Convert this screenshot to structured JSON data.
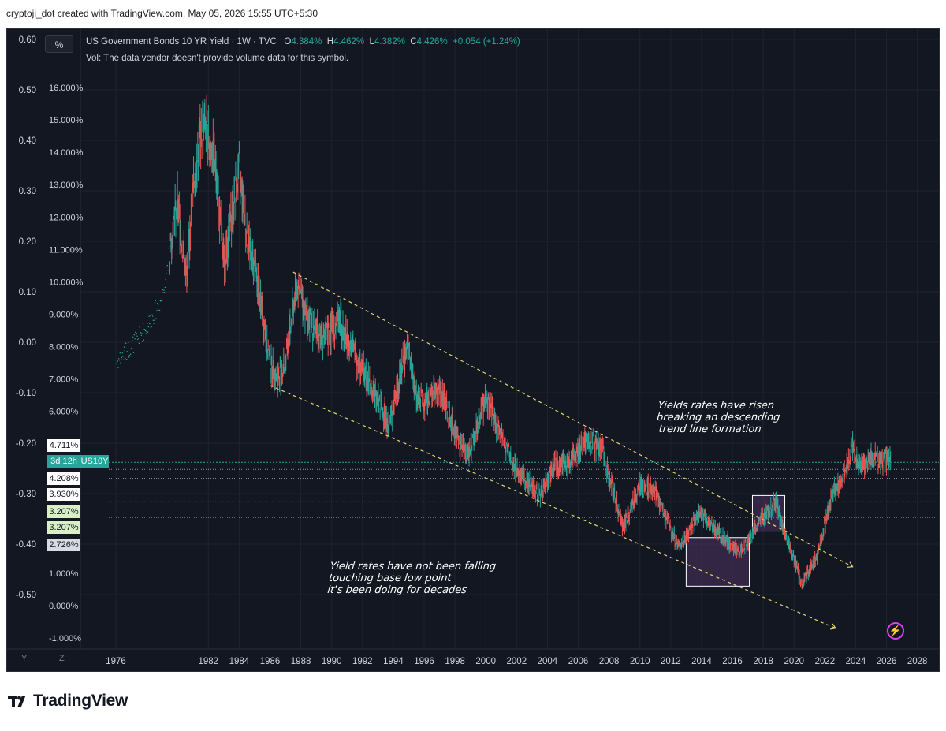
{
  "caption": "cryptoji_dot created with TradingView.com, May 05, 2026 15:55 UTC+5:30",
  "legend": {
    "symbol_button": "%",
    "title": "US Government Bonds 10 YR Yield · 1W · TVC",
    "o_label": "O",
    "o_value": "4.384%",
    "h_label": "H",
    "h_value": "4.462%",
    "l_label": "L",
    "l_value": "4.382%",
    "c_label": "C",
    "c_value": "4.426%",
    "change": "+0.054 (+1.24%)",
    "vol": "Vol: The data vendor doesn't provide volume data for this symbol."
  },
  "annotations": {
    "falling": [
      "Yield rates have not been falling",
      "touching base low point",
      "it's been doing for decades"
    ],
    "risen": [
      "Yields rates have risen",
      "breaking an descending",
      " trend line formation"
    ]
  },
  "price_labels": {
    "p4711": "4.711%",
    "countdown": "3d 12h",
    "ticker": "US10Y",
    "p4208": "4.208%",
    "p3930": "3.930%",
    "p3207a": "3.207%",
    "p3207b": "3.207%",
    "p2726": "2.726%"
  },
  "time_buttons": [
    "Y",
    "Z"
  ],
  "footer": {
    "brand": "TradingView"
  },
  "colors": {
    "background": "#131722",
    "up": "#26a69a",
    "down": "#ef5350",
    "trendline": "#e6d66a",
    "box": "#5b3a6e",
    "accent": "#e040fb"
  },
  "icons": {
    "logo": "tradingview-logo-icon",
    "bolt": "lightning-icon"
  },
  "chart_data": {
    "type": "candlestick",
    "title": "US Government Bonds 10 YR Yield · 1W · TVC",
    "xlabel": "",
    "ylabel": "",
    "x_ticks": [
      1976,
      1982,
      1984,
      1986,
      1988,
      1990,
      1992,
      1994,
      1996,
      1998,
      2000,
      2002,
      2004,
      2006,
      2008,
      2010,
      2012,
      2014,
      2016,
      2018,
      2020,
      2022,
      2024,
      2026,
      2028
    ],
    "xlim": [
      1973.7,
      2029.5
    ],
    "y_left_ticks": [
      "0.60",
      "0.50",
      "0.40",
      "0.30",
      "0.20",
      "0.10",
      "0.00",
      "-0.10",
      "-0.20",
      "-0.30",
      "-0.40",
      "-0.50"
    ],
    "y_left_values": [
      0.6,
      0.5,
      0.4,
      0.3,
      0.2,
      0.1,
      0.0,
      -0.1,
      -0.2,
      -0.3,
      -0.4,
      -0.5
    ],
    "y_right_ticks": [
      "16.000%",
      "15.000%",
      "14.000%",
      "13.000%",
      "12.000%",
      "11.000%",
      "10.000%",
      "9.000%",
      "8.000%",
      "7.000%",
      "6.000%",
      "1.000%",
      "0.000%",
      "-1.000%"
    ],
    "y_right_values": [
      16,
      15,
      14,
      13,
      12,
      11,
      10,
      9,
      8,
      7,
      6,
      1,
      0,
      -1
    ],
    "series": [
      {
        "x": [
          1976,
          1977,
          1978,
          1979,
          1980,
          1980.6,
          1981.0,
          1981.7,
          1982.5,
          1983.0,
          1983.5,
          1984.0,
          1984.5,
          1985.0,
          1986.0,
          1986.5,
          1987.0,
          1987.75,
          1988.5,
          1989.5,
          1990.5,
          1991.5,
          1992.5,
          1993.75,
          1994.9,
          1995.5,
          1996.0,
          1997.0,
          1998.0,
          1998.8,
          2000.0,
          2001.0,
          2002.0,
          2003.5,
          2004.5,
          2005.5,
          2006.5,
          2007.5,
          2008.9,
          2010.0,
          2011.0,
          2012.5,
          2013.9,
          2015.0,
          2016.5,
          2017.5,
          2018.8,
          2019.5,
          2020.5,
          2021.5,
          2022.5,
          2023.0,
          2023.8,
          2024.3,
          2025.0,
          2026.3
        ],
        "values": [
          7.5,
          8.0,
          8.6,
          9.5,
          12.5,
          10.0,
          13.0,
          15.0,
          13.5,
          10.5,
          12.0,
          13.5,
          11.5,
          10.5,
          7.5,
          7.0,
          7.5,
          10.0,
          8.8,
          8.2,
          8.8,
          7.8,
          6.8,
          5.6,
          8.0,
          6.5,
          6.2,
          6.7,
          5.4,
          4.6,
          6.4,
          5.2,
          4.2,
          3.4,
          4.4,
          4.4,
          5.1,
          4.9,
          2.4,
          3.7,
          3.5,
          1.8,
          2.9,
          2.3,
          1.6,
          2.4,
          3.2,
          2.1,
          0.7,
          1.5,
          3.5,
          3.8,
          4.9,
          4.3,
          4.6,
          4.43
        ]
      }
    ],
    "trendlines": [
      {
        "name": "",
        "from": [
          1987.5,
          10.3
        ],
        "to": [
          2023.8,
          1.2
        ]
      },
      {
        "name": "",
        "from": [
          1986.0,
          6.8
        ],
        "to": [
          2022.7,
          -0.7
        ]
      }
    ],
    "zones": [
      {
        "x": [
          2013.0,
          2017.1
        ],
        "y": [
          0.6,
          2.1
        ],
        "fill": "purple"
      },
      {
        "x": [
          2017.3,
          2019.4
        ],
        "y": [
          2.3,
          3.4
        ],
        "fill": "purple"
      }
    ],
    "hlines": [
      4.711,
      4.426,
      4.208,
      3.93,
      3.207,
      2.726
    ],
    "grid": true,
    "legend": "top-left"
  }
}
